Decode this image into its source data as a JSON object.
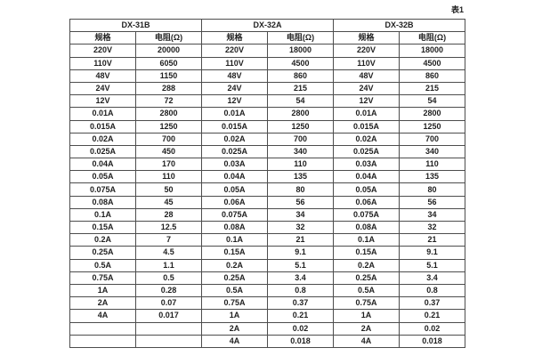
{
  "page_label": "表1",
  "colors": {
    "background": "#ffffff",
    "border": "#4d4d4d",
    "text": "#1f1f1f"
  },
  "table": {
    "groups": [
      {
        "name": "DX-31B",
        "spec_header": "规格",
        "resistance_header": "电阻(Ω)"
      },
      {
        "name": "DX-32A",
        "spec_header": "规格",
        "resistance_header": "电阻(Ω)"
      },
      {
        "name": "DX-32B",
        "spec_header": "规格",
        "resistance_header": "电阻(Ω)"
      }
    ],
    "rows": [
      [
        "220V",
        "20000",
        "220V",
        "18000",
        "220V",
        "18000"
      ],
      [
        "110V",
        "6050",
        "110V",
        "4500",
        "110V",
        "4500"
      ],
      [
        "48V",
        "1150",
        "48V",
        "860",
        "48V",
        "860"
      ],
      [
        "24V",
        "288",
        "24V",
        "215",
        "24V",
        "215"
      ],
      [
        "12V",
        "72",
        "12V",
        "54",
        "12V",
        "54"
      ],
      [
        "0.01A",
        "2800",
        "0.01A",
        "2800",
        "0.01A",
        "2800"
      ],
      [
        "0.015A",
        "1250",
        "0.015A",
        "1250",
        "0.015A",
        "1250"
      ],
      [
        "0.02A",
        "700",
        "0.02A",
        "700",
        "0.02A",
        "700"
      ],
      [
        "0.025A",
        "450",
        "0.025A",
        "340",
        "0.025A",
        "340"
      ],
      [
        "0.04A",
        "170",
        "0.03A",
        "110",
        "0.03A",
        "110"
      ],
      [
        "0.05A",
        "110",
        "0.04A",
        "135",
        "0.04A",
        "135"
      ],
      [
        "0.075A",
        "50",
        "0.05A",
        "80",
        "0.05A",
        "80"
      ],
      [
        "0.08A",
        "45",
        "0.06A",
        "56",
        "0.06A",
        "56"
      ],
      [
        "0.1A",
        "28",
        "0.075A",
        "34",
        "0.075A",
        "34"
      ],
      [
        "0.15A",
        "12.5",
        "0.08A",
        "32",
        "0.08A",
        "32"
      ],
      [
        "0.2A",
        "7",
        "0.1A",
        "21",
        "0.1A",
        "21"
      ],
      [
        "0.25A",
        "4.5",
        "0.15A",
        "9.1",
        "0.15A",
        "9.1"
      ],
      [
        "0.5A",
        "1.1",
        "0.2A",
        "5.1",
        "0.2A",
        "5.1"
      ],
      [
        "0.75A",
        "0.5",
        "0.25A",
        "3.4",
        "0.25A",
        "3.4"
      ],
      [
        "1A",
        "0.28",
        "0.5A",
        "0.8",
        "0.5A",
        "0.8"
      ],
      [
        "2A",
        "0.07",
        "0.75A",
        "0.37",
        "0.75A",
        "0.37"
      ],
      [
        "4A",
        "0.017",
        "1A",
        "0.21",
        "1A",
        "0.21"
      ],
      [
        "",
        "",
        "2A",
        "0.02",
        "2A",
        "0.02"
      ],
      [
        "",
        "",
        "4A",
        "0.018",
        "4A",
        "0.018"
      ]
    ]
  }
}
